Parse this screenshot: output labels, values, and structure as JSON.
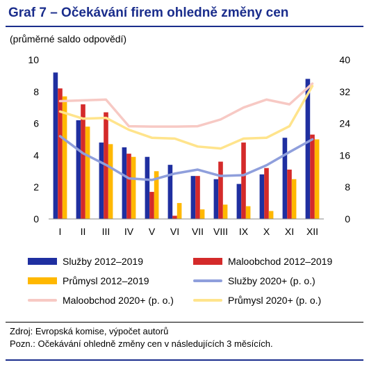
{
  "title": "Graf 7 – Očekávání firem ohledně změny cen",
  "subtitle": "(průměrné saldo odpovědí)",
  "colors": {
    "title": "#1a2d8c",
    "sluzby_bar": "#1f2fa0",
    "maloobchod_bar": "#d42a2a",
    "prumysl_bar": "#ffb800",
    "sluzby_line": "#8f9fdc",
    "maloobchod_line": "#f7c9c4",
    "prumysl_line": "#ffe48c"
  },
  "chart_data": {
    "type": "bar",
    "categories": [
      "I",
      "II",
      "III",
      "IV",
      "V",
      "VI",
      "VII",
      "VIII",
      "IX",
      "X",
      "XI",
      "XII"
    ],
    "left_axis": {
      "min": 0,
      "max": 10,
      "ticks": [
        "0",
        "2",
        "4",
        "6",
        "8",
        "10"
      ]
    },
    "right_axis": {
      "min": 0,
      "max": 40,
      "ticks": [
        "0",
        "8",
        "16",
        "24",
        "32",
        "40"
      ]
    },
    "grid": false,
    "series": [
      {
        "name": "Služby 2012–2019",
        "kind": "bar",
        "axis": "left",
        "color": "#1f2fa0",
        "values": [
          9.2,
          6.2,
          4.8,
          4.5,
          3.9,
          3.4,
          2.7,
          2.5,
          2.2,
          2.8,
          5.1,
          8.8
        ]
      },
      {
        "name": "Maloobchod 2012–2019",
        "kind": "bar",
        "axis": "left",
        "color": "#d42a2a",
        "values": [
          8.2,
          7.2,
          6.7,
          4.1,
          1.7,
          0.2,
          2.7,
          3.6,
          4.8,
          3.2,
          3.1,
          5.3
        ]
      },
      {
        "name": "Průmysl 2012–2019",
        "kind": "bar",
        "axis": "left",
        "color": "#ffb800",
        "values": [
          7.7,
          5.8,
          4.7,
          3.9,
          3.0,
          1.0,
          0.6,
          0.9,
          0.8,
          0.5,
          2.5,
          5.0
        ]
      },
      {
        "name": "Služby 2020+ (p. o.)",
        "kind": "line",
        "axis": "right",
        "color": "#8f9fdc",
        "values": [
          20.8,
          16.5,
          13.6,
          10.2,
          9.8,
          11.4,
          12.4,
          10.8,
          11.0,
          13.5,
          16.8,
          20.0
        ]
      },
      {
        "name": "Maloobchod 2020+ (p. o.)",
        "kind": "line",
        "axis": "right",
        "color": "#f7c9c4",
        "values": [
          29.6,
          29.8,
          30.0,
          23.3,
          23.2,
          23.2,
          23.3,
          25.0,
          28.0,
          30.0,
          28.8,
          34.0
        ]
      },
      {
        "name": "Průmysl 2020+ (p. o.)",
        "kind": "line",
        "axis": "right",
        "color": "#ffe48c",
        "values": [
          27.0,
          25.2,
          25.4,
          22.4,
          20.4,
          20.2,
          18.2,
          17.7,
          20.2,
          20.4,
          23.3,
          33.4
        ]
      }
    ]
  },
  "notes": {
    "source": "Zdroj: Evropská komise, výpočet autorů",
    "note": "Pozn.: Očekávání ohledně změny cen v následujících 3 měsících."
  }
}
